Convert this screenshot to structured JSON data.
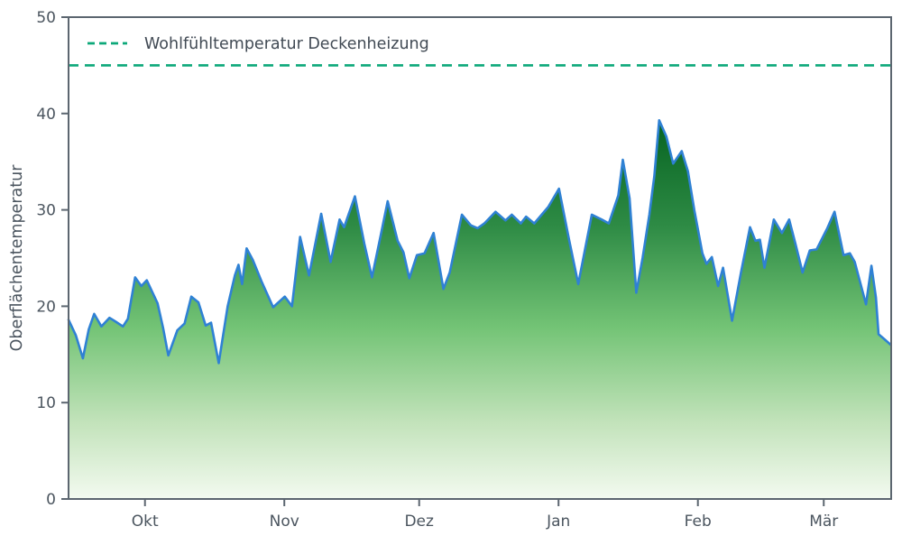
{
  "chart_data": {
    "type": "area",
    "title": "",
    "ylabel": "Oberflächentemperatur",
    "xlabel": "",
    "ylim": [
      0,
      50
    ],
    "xlim_days": [
      0,
      183
    ],
    "grid": false,
    "y_ticks": [
      0,
      10,
      20,
      30,
      40,
      50
    ],
    "x_ticks": [
      {
        "day": 17,
        "label": "Okt"
      },
      {
        "day": 48,
        "label": "Nov"
      },
      {
        "day": 78,
        "label": "Dez"
      },
      {
        "day": 109,
        "label": "Jan"
      },
      {
        "day": 140,
        "label": "Feb"
      },
      {
        "day": 168,
        "label": "Mär"
      }
    ],
    "legend": {
      "position": "upper-left",
      "entries": [
        "Wohlfühltemperatur Deckenheizung"
      ]
    },
    "threshold": {
      "name": "Wohlfühltemperatur Deckenheizung",
      "value": 45,
      "style": "dashed"
    },
    "series": [
      {
        "name": "Oberflächentemperatur",
        "style": "line-with-gradient-area",
        "x_days": [
          0,
          1.6,
          3.2,
          4.5,
          5.7,
          7.3,
          9.1,
          10.5,
          12.1,
          13.2,
          14.8,
          16.2,
          17.4,
          19.8,
          21.0,
          22.2,
          24.2,
          25.8,
          27.3,
          28.9,
          30.5,
          31.7,
          33.4,
          35.4,
          37.0,
          37.8,
          38.6,
          39.6,
          41.0,
          43.0,
          45.5,
          48.1,
          49.7,
          51.5,
          53.5,
          56.2,
          58.3,
          60.3,
          61.3,
          63.7,
          65.8,
          67.5,
          69.5,
          71.0,
          73.2,
          74.5,
          75.8,
          77.5,
          79.2,
          81.2,
          83.4,
          84.8,
          87.5,
          89.5,
          91.0,
          92.5,
          95.0,
          97.2,
          98.6,
          100.6,
          101.8,
          103.6,
          106.7,
          109.1,
          111.3,
          113.4,
          116.4,
          118.6,
          120.2,
          122.3,
          123.3,
          124.8,
          126.3,
          127.7,
          129.2,
          130.3,
          131.4,
          133.0,
          134.5,
          136.4,
          137.8,
          139.2,
          141.0,
          141.9,
          143.1,
          144.5,
          145.6,
          147.6,
          149.6,
          151.6,
          152.8,
          153.8,
          154.8,
          156.9,
          158.7,
          160.3,
          161.7,
          163.3,
          164.9,
          166.4,
          168.8,
          170.4,
          172.4,
          173.8,
          174.9,
          177.4,
          178.6,
          179.6,
          180.2,
          181.2,
          182.9
        ],
        "values": [
          18.6,
          17.0,
          14.6,
          17.6,
          19.2,
          17.9,
          18.8,
          18.4,
          17.9,
          18.7,
          23.0,
          22.1,
          22.7,
          20.3,
          17.8,
          14.9,
          17.5,
          18.2,
          21.0,
          20.4,
          18.0,
          18.3,
          14.1,
          20.0,
          23.2,
          24.3,
          22.3,
          26.0,
          24.8,
          22.5,
          19.9,
          21.0,
          20.0,
          27.2,
          23.2,
          29.6,
          24.6,
          29.0,
          28.2,
          31.4,
          26.5,
          23.0,
          27.5,
          30.9,
          26.8,
          25.6,
          22.9,
          25.3,
          25.5,
          27.6,
          21.8,
          23.5,
          29.5,
          28.4,
          28.1,
          28.6,
          29.8,
          28.9,
          29.5,
          28.6,
          29.3,
          28.6,
          30.3,
          32.2,
          27.0,
          22.3,
          29.5,
          29.0,
          28.6,
          31.5,
          35.2,
          31.2,
          21.4,
          25.0,
          29.5,
          33.5,
          39.3,
          37.6,
          34.8,
          36.1,
          34.0,
          30.0,
          25.5,
          24.4,
          25.1,
          22.1,
          24.0,
          18.5,
          23.5,
          28.2,
          26.8,
          26.9,
          24.0,
          29.0,
          27.6,
          29.0,
          26.5,
          23.5,
          25.8,
          25.9,
          28.1,
          29.8,
          25.3,
          25.5,
          24.6,
          20.2,
          24.2,
          20.9,
          17.1,
          16.7,
          16.0
        ]
      }
    ],
    "colors": {
      "line": "#2f81d4",
      "threshold": "#0da87a",
      "frame": "#5c6670",
      "tick_text": "#4b555f",
      "legend_text": "#414a54",
      "area_gradient": [
        "#066321",
        "#2e8b45",
        "#74c476",
        "#c3e3bb",
        "#f3faf0"
      ],
      "area_gradient_offsets": [
        0,
        0.28,
        0.55,
        0.8,
        1
      ]
    }
  }
}
